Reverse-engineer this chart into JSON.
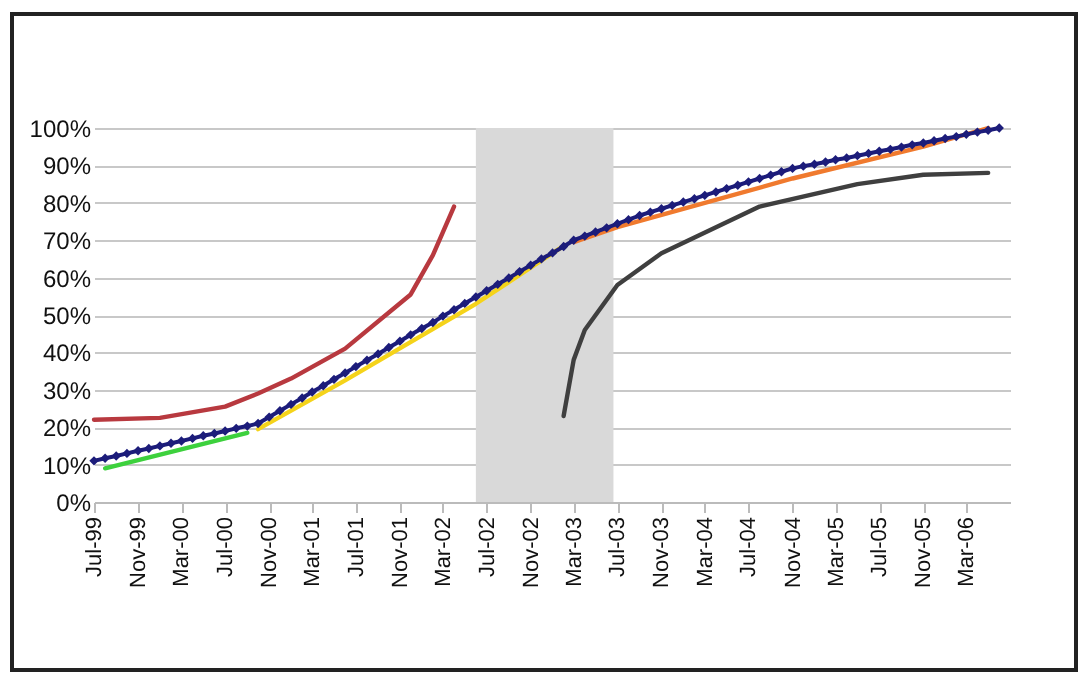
{
  "chart_data": {
    "type": "line",
    "x": [
      "1999-07",
      "1999-08",
      "1999-09",
      "1999-10",
      "1999-11",
      "1999-12",
      "2000-01",
      "2000-02",
      "2000-03",
      "2000-04",
      "2000-05",
      "2000-06",
      "2000-07",
      "2000-08",
      "2000-09",
      "2000-10",
      "2000-11",
      "2000-12",
      "2001-01",
      "2001-02",
      "2001-03",
      "2001-04",
      "2001-05",
      "2001-06",
      "2001-07",
      "2001-08",
      "2001-09",
      "2001-10",
      "2001-11",
      "2001-12",
      "2002-01",
      "2002-02",
      "2002-03",
      "2002-04",
      "2002-05",
      "2002-06",
      "2002-07",
      "2002-08",
      "2002-09",
      "2002-10",
      "2002-11",
      "2002-12",
      "2003-01",
      "2003-02",
      "2003-03",
      "2003-04",
      "2003-05",
      "2003-06",
      "2003-07",
      "2003-08",
      "2003-09",
      "2003-10",
      "2003-11",
      "2003-12",
      "2004-01",
      "2004-02",
      "2004-03",
      "2004-04",
      "2004-05",
      "2004-06",
      "2004-07",
      "2004-08",
      "2004-09",
      "2004-10",
      "2004-11",
      "2004-12",
      "2005-01",
      "2005-02",
      "2005-03",
      "2005-04",
      "2005-05",
      "2005-06",
      "2005-07",
      "2005-08",
      "2005-09",
      "2005-10",
      "2005-11",
      "2005-12",
      "2006-01",
      "2006-02",
      "2006-03",
      "2006-04",
      "2006-05",
      "2006-06"
    ],
    "series": [
      {
        "color": "#3dd13d",
        "x": [
          "1999-08",
          "2000-09"
        ],
        "values": [
          9,
          18.5
        ]
      },
      {
        "color": "#f5d31a",
        "x": [
          "2000-10",
          "2001-06",
          "2002-06",
          "2003-02"
        ],
        "values": [
          19.5,
          32.5,
          53,
          68.5
        ]
      },
      {
        "color": "#f07a2e",
        "x": [
          "2003-03",
          "2003-07",
          "2004-11",
          "2005-11",
          "2006-05"
        ],
        "values": [
          69.5,
          73.5,
          86.5,
          95,
          100
        ]
      },
      {
        "color": "#b8393f",
        "x": [
          "1999-07",
          "2000-01",
          "2000-07",
          "2000-10",
          "2001-01",
          "2001-06",
          "2001-12",
          "2002-02",
          "2002-04"
        ],
        "values": [
          22,
          22.5,
          25.5,
          29,
          33,
          41,
          55.5,
          66,
          79
        ]
      },
      {
        "color": "#3f3f3f",
        "x": [
          "2003-02",
          "2003-03",
          "2003-04",
          "2003-07",
          "2003-11",
          "2004-08",
          "2005-05",
          "2005-11",
          "2006-05"
        ],
        "values": [
          23,
          38,
          46,
          58,
          66.5,
          79,
          85,
          87.5,
          88
        ]
      },
      {
        "color": "#1c1c7a",
        "marker": "diamond",
        "values": [
          11,
          11.7,
          12.3,
          13,
          13.7,
          14.3,
          15,
          15.7,
          16.3,
          17,
          17.7,
          18.3,
          19,
          19.7,
          20.3,
          21,
          22.7,
          24.4,
          26.1,
          27.8,
          29.4,
          31.1,
          32.8,
          34.5,
          36.2,
          37.9,
          39.6,
          41.3,
          43,
          44.7,
          46.4,
          48,
          49.7,
          51.4,
          53.1,
          54.8,
          56.5,
          58.2,
          59.9,
          61.6,
          63.3,
          65,
          66.6,
          68.3,
          70,
          71.1,
          72.2,
          73.3,
          74.4,
          75.5,
          76.6,
          77.5,
          78.4,
          79.3,
          80.2,
          81.1,
          82,
          82.9,
          83.8,
          84.7,
          85.6,
          86.5,
          87.4,
          88.3,
          89.2,
          89.8,
          90.3,
          90.9,
          91.5,
          92,
          92.6,
          93.2,
          93.8,
          94.3,
          94.9,
          95.5,
          96,
          96.6,
          97.2,
          97.7,
          98.3,
          98.9,
          99.4,
          100
        ]
      }
    ],
    "xlim": [
      "1999-07",
      "2006-07"
    ],
    "xticks": [
      {
        "value": "1999-07",
        "label": "Jul-99"
      },
      {
        "value": "1999-11",
        "label": "Nov-99"
      },
      {
        "value": "2000-03",
        "label": "Mar-00"
      },
      {
        "value": "2000-07",
        "label": "Jul-00"
      },
      {
        "value": "2000-11",
        "label": "Nov-00"
      },
      {
        "value": "2001-03",
        "label": "Mar-01"
      },
      {
        "value": "2001-07",
        "label": "Jul-01"
      },
      {
        "value": "2001-11",
        "label": "Nov-01"
      },
      {
        "value": "2002-03",
        "label": "Mar-02"
      },
      {
        "value": "2002-07",
        "label": "Jul-02"
      },
      {
        "value": "2002-11",
        "label": "Nov-02"
      },
      {
        "value": "2003-03",
        "label": "Mar-03"
      },
      {
        "value": "2003-07",
        "label": "Jul-03"
      },
      {
        "value": "2003-11",
        "label": "Nov-03"
      },
      {
        "value": "2004-03",
        "label": "Mar-04"
      },
      {
        "value": "2004-07",
        "label": "Jul-04"
      },
      {
        "value": "2004-11",
        "label": "Nov-04"
      },
      {
        "value": "2005-03",
        "label": "Mar-05"
      },
      {
        "value": "2005-07",
        "label": "Jul-05"
      },
      {
        "value": "2005-11",
        "label": "Nov-05"
      },
      {
        "value": "2006-03",
        "label": "Mar-06"
      }
    ],
    "ylim": [
      0,
      100
    ],
    "yticks": [
      {
        "value": 0,
        "label": "0%"
      },
      {
        "value": 10,
        "label": "10%"
      },
      {
        "value": 20,
        "label": "20%"
      },
      {
        "value": 30,
        "label": "30%"
      },
      {
        "value": 40,
        "label": "40%"
      },
      {
        "value": 50,
        "label": "50%"
      },
      {
        "value": 60,
        "label": "60%"
      },
      {
        "value": 70,
        "label": "70%"
      },
      {
        "value": 80,
        "label": "80%"
      },
      {
        "value": 90,
        "label": "90%"
      },
      {
        "value": 100,
        "label": "100%"
      }
    ],
    "bands": [
      {
        "axis": "x",
        "from": "2002-06",
        "to": "2003-06-20",
        "color": "#d9d9d9"
      }
    ],
    "grid": "y",
    "line_style": "solid"
  }
}
